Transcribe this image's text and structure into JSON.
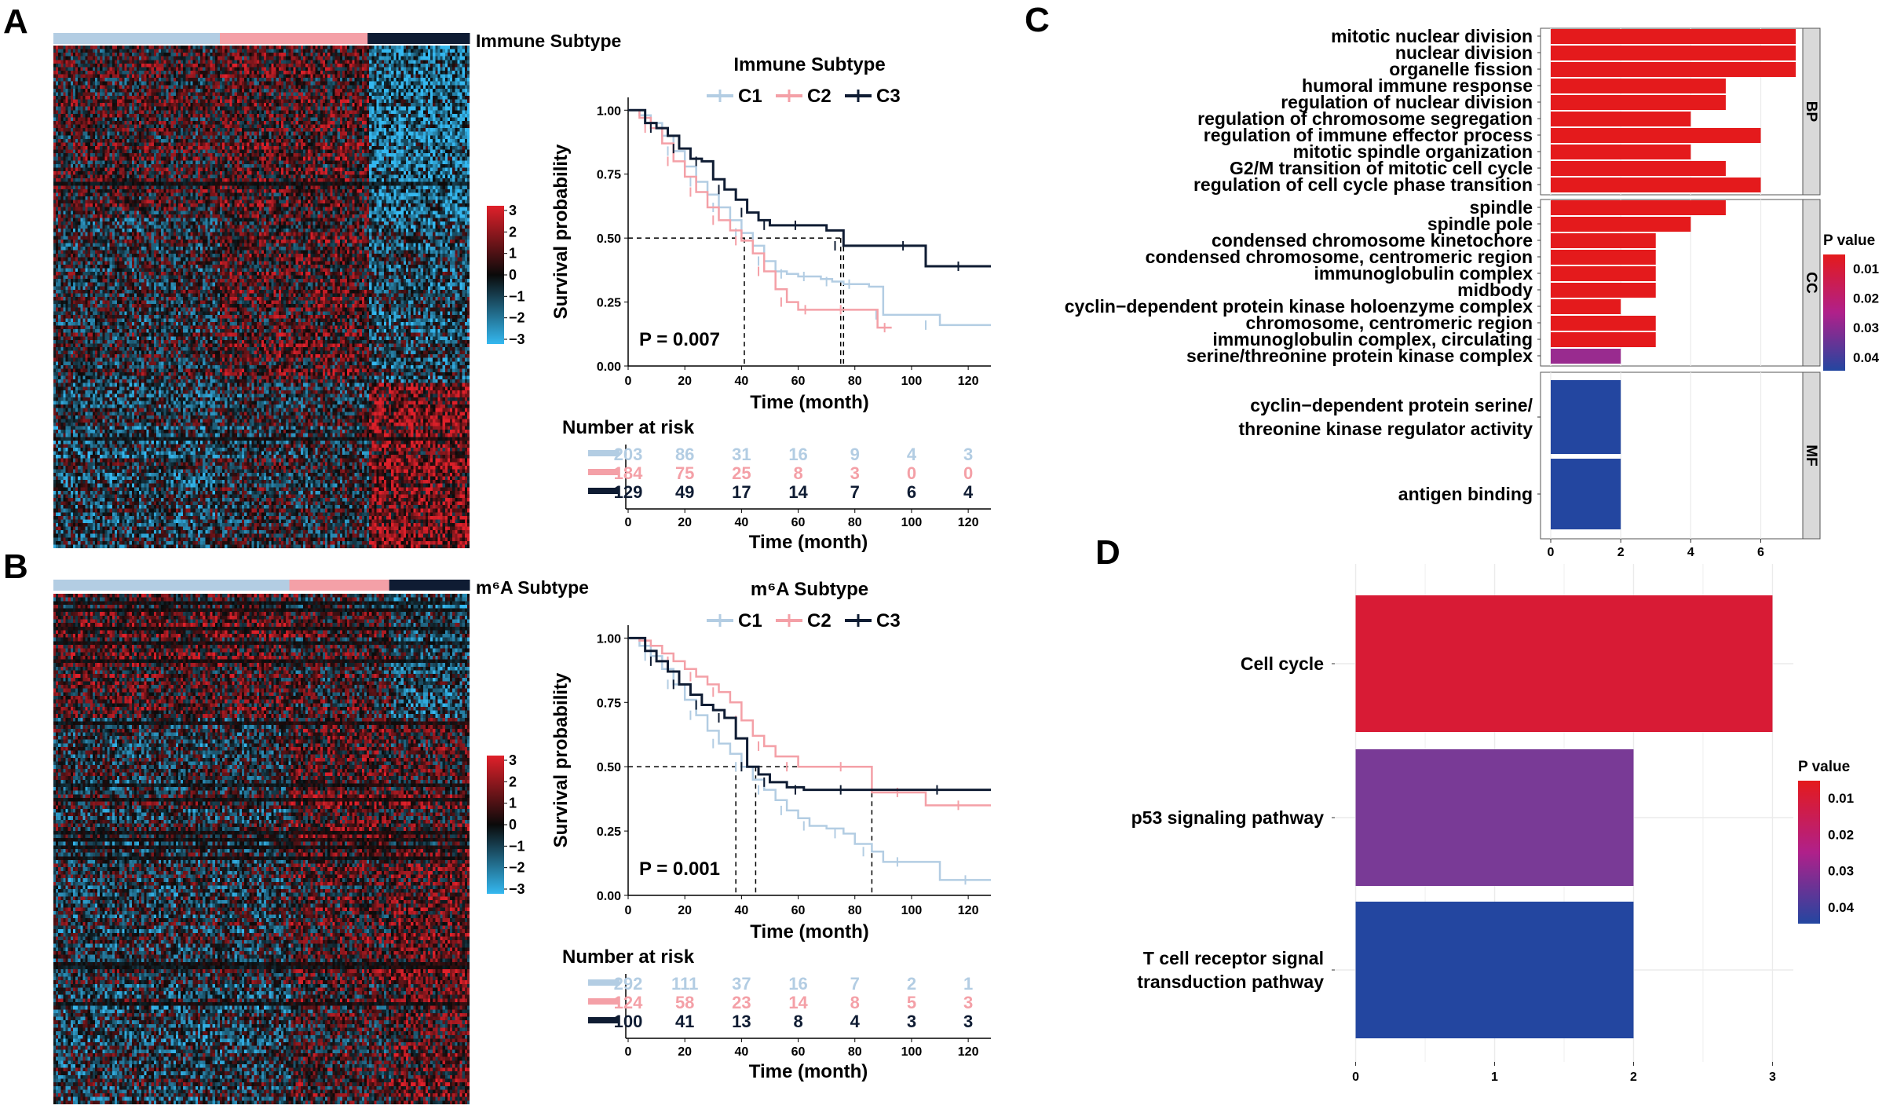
{
  "colors": {
    "c1": "#b3cde3",
    "c2": "#f4a0a7",
    "c3": "#0f1c33",
    "bar_low_p": "#e41a1c",
    "bar_mid_p": "#7b3a96",
    "bar_high_p": "#2346a0",
    "heat_high": "#e0202a",
    "heat_mid": "#0a0a0a",
    "heat_low": "#34b8f0",
    "grid": "#ebebeb",
    "panel_strip": "#d9d9d9"
  },
  "chart_data": [
    {
      "id": "A-heatmap",
      "type": "heatmap",
      "panel_label": "A",
      "annotation_label": "Immune Subtype",
      "groups": [
        {
          "name": "C1",
          "fraction": 0.4
        },
        {
          "name": "C2",
          "fraction": 0.355
        },
        {
          "name": "C3",
          "fraction": 0.245
        }
      ],
      "colorbar_ticks": [
        "3",
        "2",
        "1",
        "0",
        "−1",
        "−2",
        "−3"
      ],
      "zlim": [
        -3,
        3
      ]
    },
    {
      "id": "A-km",
      "type": "line",
      "title": "Immune Subtype",
      "legend": [
        "C1",
        "C2",
        "C3"
      ],
      "xlabel": "Time (month)",
      "ylabel": "Survival probability",
      "xlim": [
        0,
        128
      ],
      "ylim": [
        0,
        1.05
      ],
      "xticks": [
        "0",
        "20",
        "40",
        "60",
        "80",
        "100",
        "120"
      ],
      "yticks": [
        "0.00",
        "0.25",
        "0.50",
        "0.75",
        "1.00"
      ],
      "pvalue": "P = 0.007",
      "medians": [
        75,
        41,
        76
      ],
      "series": [
        {
          "name": "C1",
          "t": [
            0,
            4,
            8,
            12,
            16,
            20,
            24,
            28,
            32,
            36,
            40,
            44,
            48,
            52,
            56,
            60,
            64,
            68,
            72,
            76,
            80,
            85,
            90,
            100,
            110,
            128
          ],
          "s": [
            1,
            0.98,
            0.95,
            0.9,
            0.84,
            0.78,
            0.72,
            0.67,
            0.62,
            0.57,
            0.52,
            0.47,
            0.41,
            0.37,
            0.36,
            0.35,
            0.35,
            0.34,
            0.33,
            0.32,
            0.32,
            0.31,
            0.2,
            0.2,
            0.16,
            0.16
          ]
        },
        {
          "name": "C2",
          "t": [
            0,
            4,
            8,
            12,
            16,
            20,
            24,
            28,
            32,
            36,
            40,
            44,
            48,
            52,
            56,
            60,
            65,
            70,
            80,
            88,
            93
          ],
          "s": [
            1,
            0.97,
            0.93,
            0.87,
            0.8,
            0.74,
            0.68,
            0.62,
            0.57,
            0.53,
            0.49,
            0.44,
            0.37,
            0.3,
            0.25,
            0.22,
            0.22,
            0.22,
            0.22,
            0.15,
            0.15
          ]
        },
        {
          "name": "C3",
          "t": [
            0,
            6,
            10,
            14,
            18,
            22,
            26,
            30,
            34,
            38,
            42,
            46,
            50,
            56,
            62,
            70,
            76,
            90,
            104,
            105,
            128
          ],
          "s": [
            1,
            0.95,
            0.93,
            0.9,
            0.85,
            0.81,
            0.8,
            0.73,
            0.69,
            0.65,
            0.6,
            0.57,
            0.55,
            0.55,
            0.55,
            0.53,
            0.47,
            0.47,
            0.47,
            0.39,
            0.39
          ]
        }
      ]
    },
    {
      "id": "A-risk",
      "type": "table",
      "title": "Number at risk",
      "xlabel": "Time (month)",
      "times": [
        "0",
        "20",
        "40",
        "60",
        "80",
        "100",
        "120"
      ],
      "rows": [
        {
          "name": "C1",
          "values": [
            "203",
            "86",
            "31",
            "16",
            "9",
            "4",
            "3"
          ]
        },
        {
          "name": "C2",
          "values": [
            "184",
            "75",
            "25",
            "8",
            "3",
            "0",
            "0"
          ]
        },
        {
          "name": "C3",
          "values": [
            "129",
            "49",
            "17",
            "14",
            "7",
            "6",
            "4"
          ]
        }
      ]
    },
    {
      "id": "B-heatmap",
      "type": "heatmap",
      "panel_label": "B",
      "annotation_label": "m⁶A Subtype",
      "groups": [
        {
          "name": "C1",
          "fraction": 0.567
        },
        {
          "name": "C2",
          "fraction": 0.24
        },
        {
          "name": "C3",
          "fraction": 0.193
        }
      ],
      "colorbar_ticks": [
        "3",
        "2",
        "1",
        "0",
        "−1",
        "−2",
        "−3"
      ],
      "zlim": [
        -3,
        3
      ]
    },
    {
      "id": "B-km",
      "type": "line",
      "title": "m⁶A Subtype",
      "legend": [
        "C1",
        "C2",
        "C3"
      ],
      "xlabel": "Time (month)",
      "ylabel": "Survival probability",
      "xlim": [
        0,
        128
      ],
      "ylim": [
        0,
        1.05
      ],
      "xticks": [
        "0",
        "20",
        "40",
        "60",
        "80",
        "100",
        "120"
      ],
      "yticks": [
        "0.00",
        "0.25",
        "0.50",
        "0.75",
        "1.00"
      ],
      "pvalue": "P = 0.001",
      "medians": [
        38,
        86,
        45
      ],
      "series": [
        {
          "name": "C1",
          "t": [
            0,
            4,
            8,
            12,
            16,
            20,
            24,
            28,
            32,
            36,
            40,
            44,
            48,
            52,
            56,
            60,
            64,
            70,
            76,
            80,
            86,
            90,
            100,
            110,
            128
          ],
          "s": [
            1,
            0.97,
            0.93,
            0.88,
            0.82,
            0.76,
            0.7,
            0.64,
            0.59,
            0.55,
            0.5,
            0.45,
            0.41,
            0.37,
            0.33,
            0.3,
            0.27,
            0.26,
            0.24,
            0.2,
            0.17,
            0.13,
            0.13,
            0.06,
            0.06
          ]
        },
        {
          "name": "C2",
          "t": [
            0,
            4,
            8,
            12,
            16,
            20,
            24,
            28,
            32,
            36,
            40,
            44,
            48,
            52,
            60,
            70,
            80,
            86,
            104,
            105,
            128
          ],
          "s": [
            1,
            0.99,
            0.97,
            0.94,
            0.91,
            0.88,
            0.85,
            0.82,
            0.79,
            0.75,
            0.68,
            0.62,
            0.58,
            0.54,
            0.5,
            0.5,
            0.5,
            0.4,
            0.4,
            0.35,
            0.35
          ]
        },
        {
          "name": "C3",
          "t": [
            0,
            6,
            10,
            14,
            18,
            22,
            26,
            30,
            34,
            38,
            42,
            46,
            50,
            56,
            62,
            70,
            80,
            90,
            128
          ],
          "s": [
            1,
            0.95,
            0.91,
            0.87,
            0.82,
            0.78,
            0.74,
            0.72,
            0.69,
            0.61,
            0.5,
            0.47,
            0.44,
            0.42,
            0.41,
            0.41,
            0.41,
            0.41,
            0.41
          ]
        }
      ]
    },
    {
      "id": "B-risk",
      "type": "table",
      "title": "Number at risk",
      "xlabel": "Time (month)",
      "times": [
        "0",
        "20",
        "40",
        "60",
        "80",
        "100",
        "120"
      ],
      "rows": [
        {
          "name": "C1",
          "values": [
            "292",
            "111",
            "37",
            "16",
            "7",
            "2",
            "1"
          ]
        },
        {
          "name": "C2",
          "values": [
            "124",
            "58",
            "23",
            "14",
            "8",
            "5",
            "3"
          ]
        },
        {
          "name": "C3",
          "values": [
            "100",
            "41",
            "13",
            "8",
            "4",
            "3",
            "3"
          ]
        }
      ]
    },
    {
      "id": "C-go",
      "type": "bar",
      "panel_label": "C",
      "orientation": "horizontal",
      "xticks": [
        "0",
        "2",
        "4",
        "6"
      ],
      "xlim": [
        0,
        7.2
      ],
      "legend_title": "P value",
      "legend_ticks": [
        "0.01",
        "0.02",
        "0.03",
        "0.04"
      ],
      "facets": [
        {
          "name": "BP",
          "categories": [
            "mitotic nuclear division",
            "nuclear division",
            "organelle fission",
            "humoral immune response",
            "regulation of nuclear division",
            "regulation of chromosome segregation",
            "regulation of  immune effector process",
            "mitotic spindle organization",
            "G2/M transition of mitotic cell cycle",
            "regulation of cell cycle phase transition"
          ],
          "values": [
            7,
            7,
            7,
            5,
            5,
            4,
            6,
            4,
            5,
            6
          ],
          "pvalues": [
            0.002,
            0.002,
            0.002,
            0.003,
            0.003,
            0.004,
            0.003,
            0.004,
            0.003,
            0.003
          ]
        },
        {
          "name": "CC",
          "categories": [
            "spindle",
            "spindle pole",
            "condensed chromosome kinetochore",
            "condensed chromosome, centromeric region",
            "immunoglobulin complex",
            "midbody",
            "cyclin−dependent protein kinase holoenzyme complex",
            "chromosome, centromeric region",
            "immunoglobulin complex, circulating",
            "serine/threonine protein kinase complex"
          ],
          "values": [
            5,
            4,
            3,
            3,
            3,
            3,
            2,
            3,
            3,
            2
          ],
          "pvalues": [
            0.003,
            0.003,
            0.004,
            0.004,
            0.004,
            0.004,
            0.005,
            0.004,
            0.005,
            0.024
          ]
        },
        {
          "name": "MF",
          "categories": [
            "cyclin−dependent protein serine/ threonine kinase regulator activity",
            "antigen binding"
          ],
          "category_lines": [
            [
              "cyclin−dependent protein serine/",
              "threonine kinase regulator activity"
            ],
            [
              "antigen binding"
            ]
          ],
          "values": [
            2,
            2
          ],
          "pvalues": [
            0.045,
            0.045
          ]
        }
      ]
    },
    {
      "id": "D-kegg",
      "type": "bar",
      "panel_label": "D",
      "orientation": "horizontal",
      "categories": [
        "Cell cycle",
        "p53 signaling pathway",
        "T cell receptor signal transduction pathway"
      ],
      "category_lines": [
        [
          "Cell cycle"
        ],
        [
          "p53 signaling pathway"
        ],
        [
          "T cell receptor signal",
          "transduction pathway"
        ]
      ],
      "values": [
        3,
        2,
        2
      ],
      "pvalues": [
        0.008,
        0.032,
        0.045
      ],
      "xticks": [
        "0",
        "1",
        "2",
        "3"
      ],
      "xlim": [
        -0.15,
        3.15
      ],
      "legend_title": "P value",
      "legend_ticks": [
        "0.01",
        "0.02",
        "0.03",
        "0.04"
      ]
    }
  ]
}
